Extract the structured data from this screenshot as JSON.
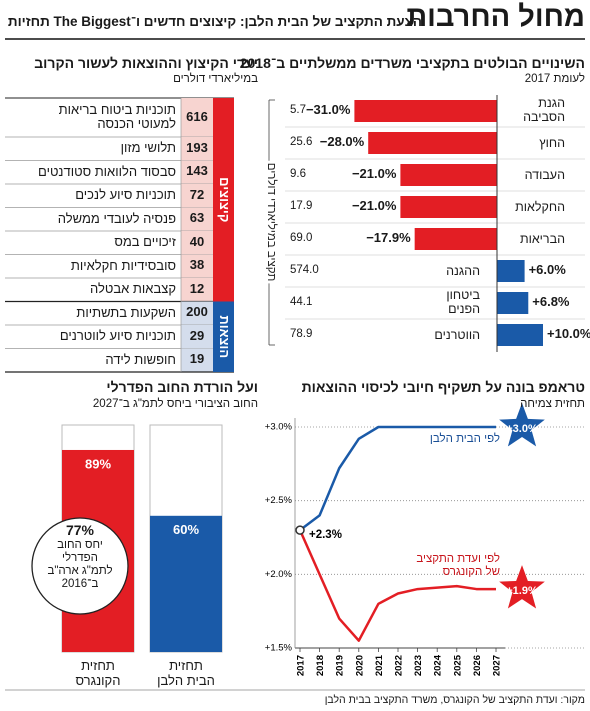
{
  "header": {
    "title": "מחול החרבות",
    "subtitle": "הצעת התקציב של הבית הלבן: קיצוצים חדשים ו־The Biggest תחזיות"
  },
  "chart_data": [
    {
      "type": "bar",
      "orientation": "horizontal",
      "title": "השינויים הבולטים בתקציבי משרדים ממשלתיים ב־2018",
      "subtitle": "לעומת 2017",
      "y_label": "תקציב במיליארדי דולרים",
      "categories": [
        "הגנת\nהסביבה",
        "החוץ",
        "העבודה",
        "החקלאות",
        "הבריאות",
        "ההגנה",
        "ביטחון\nהפנים",
        "הווטרנים"
      ],
      "values": [
        -31.0,
        -28.0,
        -21.0,
        -21.0,
        -17.9,
        6.0,
        6.8,
        10.0
      ],
      "value_labels": [
        "−31.0%",
        "−28.0%",
        "−21.0%",
        "−21.0%",
        "−17.9%",
        "+6.0%",
        "+6.8%",
        "+10.0%"
      ],
      "budgets": [
        5.7,
        25.6,
        9.6,
        17.9,
        69.0,
        574.0,
        44.1,
        78.9
      ],
      "budget_labels": [
        "5.7",
        "25.6",
        "9.6",
        "17.9",
        "69.0",
        "574.0",
        "44.1",
        "78.9"
      ],
      "negative_color": "#e31e24",
      "positive_color": "#1a5aa8"
    },
    {
      "type": "table",
      "title": "יעדי הקיצוץ וההוצאות לעשור הקרוב",
      "subtitle": "במיליארדי דולרים",
      "groups": [
        {
          "name": "קיצוצים",
          "color": "#e31e24",
          "cell_color": "#f7d4d0",
          "items": [
            "תוכניות ביטוח בריאות\nלמעוטי הכנסה",
            "תלושי מזון",
            "סבסוד הלוואות סטודנטים",
            "תוכניות סיוע לנכים",
            "פנסיה לעובדי ממשלה",
            "זיכויים במס",
            "סובסידיות חקלאיות",
            "קצבאות אבטלה"
          ],
          "values": [
            616,
            193,
            143,
            72,
            63,
            40,
            38,
            12
          ]
        },
        {
          "name": "הוצאות",
          "color": "#1a5aa8",
          "cell_color": "#d4ddec",
          "items": [
            "השקעות בתשתיות",
            "תוכניות סיוע לווטרנים",
            "חופשות לידה"
          ],
          "values": [
            200,
            29,
            19
          ]
        }
      ]
    },
    {
      "type": "line",
      "title": "טראמפ בונה על תשקיף חיובי לכיסוי ההוצאות",
      "subtitle": "תחזית צמיחה",
      "x": [
        2017,
        2018,
        2019,
        2020,
        2021,
        2022,
        2023,
        2024,
        2025,
        2026,
        2027
      ],
      "xlim": [
        2017,
        2027
      ],
      "xticks": [
        2017,
        2018,
        2019,
        2020,
        2021,
        2022,
        2023,
        2024,
        2025,
        2026,
        2027
      ],
      "ylim": [
        1.5,
        3.0
      ],
      "yticks": [
        {
          "value": 1.5,
          "label": "+1.5%"
        },
        {
          "value": 2.0,
          "label": "+2.0%"
        },
        {
          "value": 2.5,
          "label": "+2.5%"
        },
        {
          "value": 3.0,
          "label": "+3.0%"
        }
      ],
      "grid": true,
      "start_label": "+2.3%",
      "series": [
        {
          "name": "לפי הבית הלבן",
          "color": "#1a5aa8",
          "values": [
            2.3,
            2.4,
            2.72,
            2.92,
            3.0,
            3.0,
            3.0,
            3.0,
            3.0,
            3.0,
            3.0
          ],
          "end_label": "+3.0%"
        },
        {
          "name": "לפי ועדת התקציב\nשל הקונגרס",
          "color": "#e31e24",
          "values": [
            2.3,
            2.0,
            1.7,
            1.55,
            1.8,
            1.87,
            1.9,
            1.91,
            1.92,
            1.9,
            1.9
          ],
          "end_label": "+1.9%"
        }
      ]
    },
    {
      "type": "bar",
      "orientation": "vertical",
      "title": "ועל הורדת החוב הפדרלי",
      "subtitle": "החוב הציבורי ביחס לתמ\"ג ב־2027",
      "categories": [
        "תחזית\nהבית הלבן",
        "תחזית\nהקונגרס"
      ],
      "values": [
        60,
        89
      ],
      "value_labels": [
        "60%",
        "89%"
      ],
      "colors": [
        "#1a5aa8",
        "#e31e24"
      ],
      "ylim": [
        0,
        100
      ],
      "annotation": {
        "value": 77,
        "label": "77%",
        "text": "יחס החוב\nהפדרלי\nלתמ\"ג ארה\"ב\nב־2016"
      }
    }
  ],
  "source": "מקור: ועדת התקציב של הקונגרס, משרד התקציב בבית הלבן"
}
